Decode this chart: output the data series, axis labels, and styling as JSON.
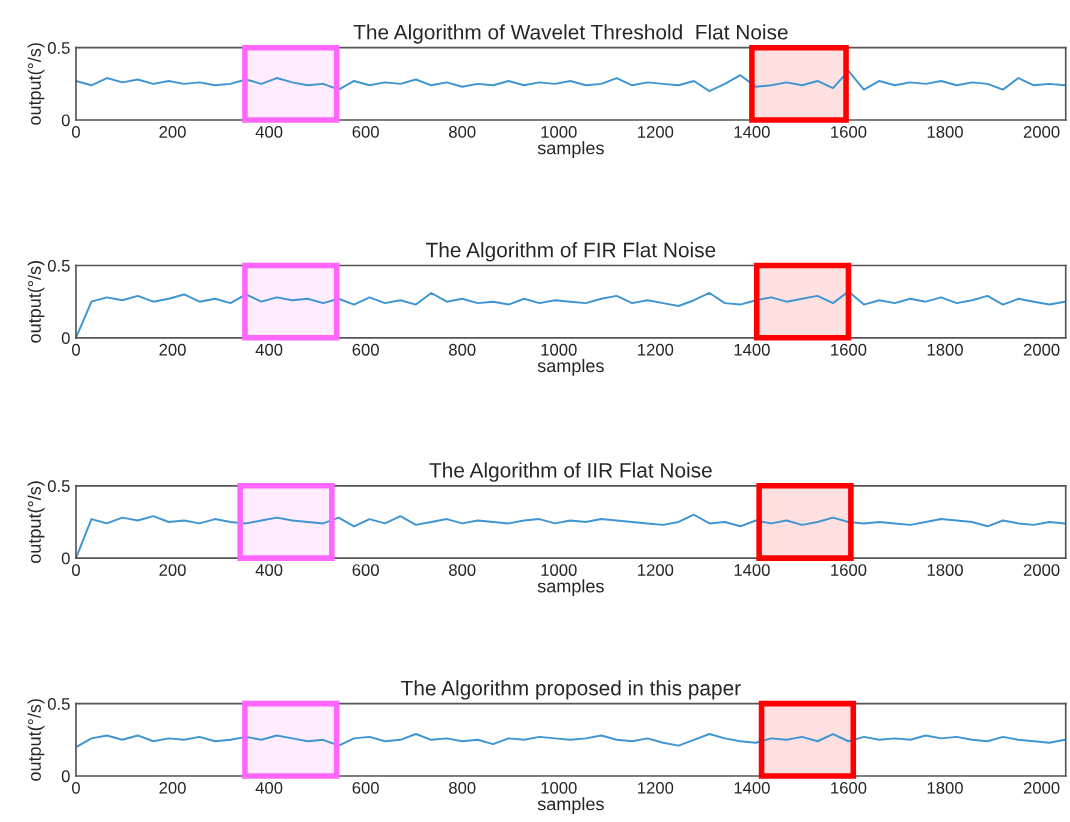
{
  "chart_data": [
    {
      "type": "line",
      "title": "The Algorithm of Wavelet Threshold  Flat Noise",
      "xlabel": "samples",
      "ylabel": "output(°/s)",
      "xlim": [
        0,
        2050
      ],
      "ylim": [
        0,
        0.5
      ],
      "xticks": [
        0,
        200,
        400,
        600,
        800,
        1000,
        1200,
        1400,
        1600,
        1800,
        2000
      ],
      "yticks": [
        0,
        0.5
      ],
      "x": [
        0,
        32,
        64,
        96,
        128,
        160,
        192,
        224,
        256,
        288,
        320,
        352,
        384,
        416,
        448,
        480,
        512,
        544,
        576,
        608,
        640,
        672,
        704,
        736,
        768,
        800,
        832,
        864,
        896,
        928,
        960,
        992,
        1024,
        1056,
        1088,
        1120,
        1152,
        1184,
        1216,
        1248,
        1280,
        1312,
        1344,
        1376,
        1408,
        1440,
        1472,
        1504,
        1536,
        1568,
        1600,
        1632,
        1664,
        1696,
        1728,
        1760,
        1792,
        1824,
        1856,
        1888,
        1920,
        1952,
        1984,
        2016,
        2048
      ],
      "series": [
        {
          "color": "#3e95d1",
          "values": [
            0.27,
            0.24,
            0.29,
            0.26,
            0.28,
            0.25,
            0.27,
            0.25,
            0.26,
            0.24,
            0.25,
            0.28,
            0.25,
            0.29,
            0.26,
            0.24,
            0.25,
            0.21,
            0.27,
            0.24,
            0.26,
            0.25,
            0.28,
            0.24,
            0.26,
            0.23,
            0.25,
            0.24,
            0.27,
            0.24,
            0.26,
            0.25,
            0.27,
            0.24,
            0.25,
            0.29,
            0.24,
            0.26,
            0.25,
            0.24,
            0.27,
            0.2,
            0.25,
            0.31,
            0.23,
            0.24,
            0.26,
            0.24,
            0.27,
            0.22,
            0.34,
            0.21,
            0.27,
            0.24,
            0.26,
            0.25,
            0.27,
            0.24,
            0.26,
            0.25,
            0.21,
            0.29,
            0.24,
            0.25,
            0.24
          ]
        }
      ],
      "bands": [
        {
          "axis": "x",
          "from": 350,
          "to": 540,
          "color": "#ff66ff"
        },
        {
          "axis": "x",
          "from": 1400,
          "to": 1595,
          "color": "#ff0000"
        }
      ]
    },
    {
      "type": "line",
      "title": "The Algorithm of FIR Flat Noise",
      "xlabel": "samples",
      "ylabel": "output(°/s)",
      "xlim": [
        0,
        2050
      ],
      "ylim": [
        0,
        0.5
      ],
      "xticks": [
        0,
        200,
        400,
        600,
        800,
        1000,
        1200,
        1400,
        1600,
        1800,
        2000
      ],
      "yticks": [
        0,
        0.5
      ],
      "x": [
        0,
        32,
        64,
        96,
        128,
        160,
        192,
        224,
        256,
        288,
        320,
        352,
        384,
        416,
        448,
        480,
        512,
        544,
        576,
        608,
        640,
        672,
        704,
        736,
        768,
        800,
        832,
        864,
        896,
        928,
        960,
        992,
        1024,
        1056,
        1088,
        1120,
        1152,
        1184,
        1216,
        1248,
        1280,
        1312,
        1344,
        1376,
        1408,
        1440,
        1472,
        1504,
        1536,
        1568,
        1600,
        1632,
        1664,
        1696,
        1728,
        1760,
        1792,
        1824,
        1856,
        1888,
        1920,
        1952,
        1984,
        2016,
        2048
      ],
      "series": [
        {
          "color": "#3e95d1",
          "values": [
            0.0,
            0.25,
            0.28,
            0.26,
            0.29,
            0.25,
            0.27,
            0.3,
            0.25,
            0.27,
            0.24,
            0.3,
            0.25,
            0.28,
            0.26,
            0.27,
            0.24,
            0.27,
            0.23,
            0.28,
            0.24,
            0.26,
            0.23,
            0.31,
            0.25,
            0.27,
            0.24,
            0.25,
            0.23,
            0.27,
            0.24,
            0.26,
            0.25,
            0.24,
            0.27,
            0.29,
            0.24,
            0.26,
            0.24,
            0.22,
            0.26,
            0.31,
            0.24,
            0.23,
            0.26,
            0.28,
            0.25,
            0.27,
            0.29,
            0.24,
            0.32,
            0.23,
            0.26,
            0.24,
            0.27,
            0.25,
            0.28,
            0.24,
            0.26,
            0.29,
            0.23,
            0.27,
            0.25,
            0.23,
            0.25
          ]
        }
      ],
      "bands": [
        {
          "axis": "x",
          "from": 350,
          "to": 540,
          "color": "#ff66ff"
        },
        {
          "axis": "x",
          "from": 1410,
          "to": 1600,
          "color": "#ff0000"
        }
      ]
    },
    {
      "type": "line",
      "title": "The Algorithm of IIR Flat Noise",
      "xlabel": "samples",
      "ylabel": "output(°/s)",
      "xlim": [
        0,
        2050
      ],
      "ylim": [
        0,
        0.5
      ],
      "xticks": [
        0,
        200,
        400,
        600,
        800,
        1000,
        1200,
        1400,
        1600,
        1800,
        2000
      ],
      "yticks": [
        0,
        0.5
      ],
      "x": [
        0,
        32,
        64,
        96,
        128,
        160,
        192,
        224,
        256,
        288,
        320,
        352,
        384,
        416,
        448,
        480,
        512,
        544,
        576,
        608,
        640,
        672,
        704,
        736,
        768,
        800,
        832,
        864,
        896,
        928,
        960,
        992,
        1024,
        1056,
        1088,
        1120,
        1152,
        1184,
        1216,
        1248,
        1280,
        1312,
        1344,
        1376,
        1408,
        1440,
        1472,
        1504,
        1536,
        1568,
        1600,
        1632,
        1664,
        1696,
        1728,
        1760,
        1792,
        1824,
        1856,
        1888,
        1920,
        1952,
        1984,
        2016,
        2048
      ],
      "series": [
        {
          "color": "#3e95d1",
          "values": [
            0.0,
            0.27,
            0.24,
            0.28,
            0.26,
            0.29,
            0.25,
            0.26,
            0.24,
            0.27,
            0.25,
            0.24,
            0.26,
            0.28,
            0.26,
            0.25,
            0.24,
            0.28,
            0.22,
            0.27,
            0.24,
            0.29,
            0.23,
            0.25,
            0.27,
            0.24,
            0.26,
            0.25,
            0.24,
            0.26,
            0.27,
            0.24,
            0.26,
            0.25,
            0.27,
            0.26,
            0.25,
            0.24,
            0.23,
            0.25,
            0.3,
            0.24,
            0.25,
            0.22,
            0.26,
            0.24,
            0.26,
            0.23,
            0.25,
            0.28,
            0.25,
            0.24,
            0.25,
            0.24,
            0.23,
            0.25,
            0.27,
            0.26,
            0.25,
            0.22,
            0.26,
            0.24,
            0.23,
            0.25,
            0.24
          ]
        }
      ],
      "bands": [
        {
          "axis": "x",
          "from": 340,
          "to": 530,
          "color": "#ff66ff"
        },
        {
          "axis": "x",
          "from": 1415,
          "to": 1605,
          "color": "#ff0000"
        }
      ]
    },
    {
      "type": "line",
      "title": "The Algorithm proposed in this paper",
      "xlabel": "samples",
      "ylabel": "output(°/s)",
      "xlim": [
        0,
        2050
      ],
      "ylim": [
        0,
        0.5
      ],
      "xticks": [
        0,
        200,
        400,
        600,
        800,
        1000,
        1200,
        1400,
        1600,
        1800,
        2000
      ],
      "yticks": [
        0,
        0.5
      ],
      "x": [
        0,
        32,
        64,
        96,
        128,
        160,
        192,
        224,
        256,
        288,
        320,
        352,
        384,
        416,
        448,
        480,
        512,
        544,
        576,
        608,
        640,
        672,
        704,
        736,
        768,
        800,
        832,
        864,
        896,
        928,
        960,
        992,
        1024,
        1056,
        1088,
        1120,
        1152,
        1184,
        1216,
        1248,
        1280,
        1312,
        1344,
        1376,
        1408,
        1440,
        1472,
        1504,
        1536,
        1568,
        1600,
        1632,
        1664,
        1696,
        1728,
        1760,
        1792,
        1824,
        1856,
        1888,
        1920,
        1952,
        1984,
        2016,
        2048
      ],
      "series": [
        {
          "color": "#3e95d1",
          "values": [
            0.2,
            0.26,
            0.28,
            0.25,
            0.28,
            0.24,
            0.26,
            0.25,
            0.27,
            0.24,
            0.25,
            0.27,
            0.25,
            0.28,
            0.26,
            0.24,
            0.25,
            0.21,
            0.26,
            0.27,
            0.24,
            0.25,
            0.29,
            0.25,
            0.26,
            0.24,
            0.25,
            0.22,
            0.26,
            0.25,
            0.27,
            0.26,
            0.25,
            0.26,
            0.28,
            0.25,
            0.24,
            0.26,
            0.23,
            0.21,
            0.25,
            0.29,
            0.26,
            0.24,
            0.23,
            0.26,
            0.25,
            0.27,
            0.24,
            0.29,
            0.24,
            0.27,
            0.25,
            0.26,
            0.25,
            0.28,
            0.26,
            0.27,
            0.25,
            0.24,
            0.27,
            0.25,
            0.24,
            0.23,
            0.25
          ]
        }
      ],
      "bands": [
        {
          "axis": "x",
          "from": 350,
          "to": 540,
          "color": "#ff66ff"
        },
        {
          "axis": "x",
          "from": 1420,
          "to": 1610,
          "color": "#ff0000"
        }
      ]
    }
  ]
}
